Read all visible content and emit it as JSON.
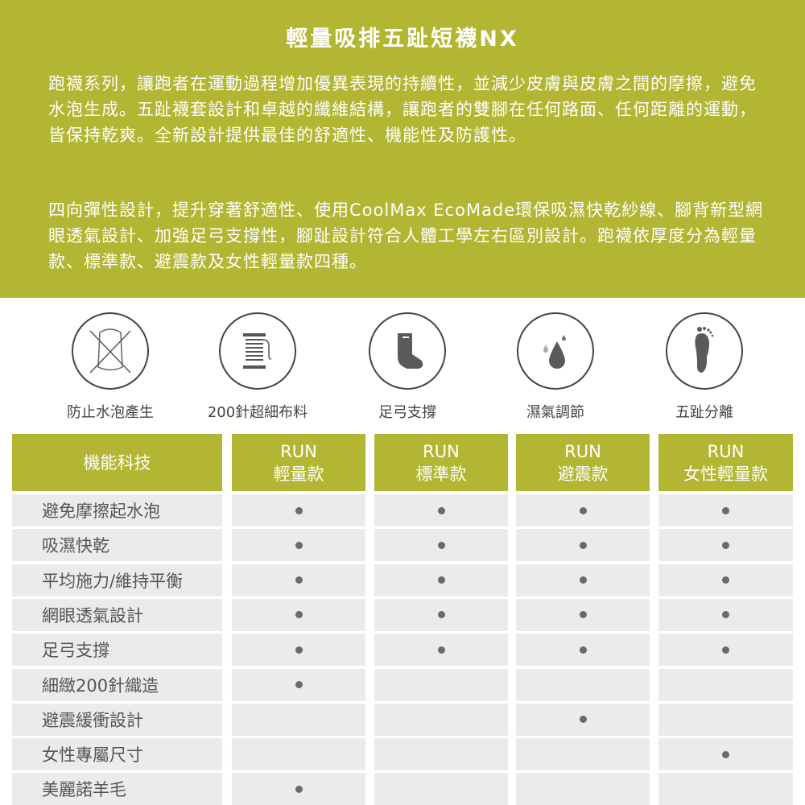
{
  "header": {
    "title": "輕量吸排五趾短襪NX",
    "paragraph1": "跑襪系列，讓跑者在運動過程增加優異表現的持續性，並減少皮膚與皮膚之間的摩擦，避免水泡生成。五趾襪套設計和卓越的纖維結構，讓跑者的雙腳在任何路面、任何距離的運動，皆保持乾爽。全新設計提供最佳的舒適性、機能性及防護性。",
    "paragraph2": "四向彈性設計，提升穿著舒適性、使用CoolMax EcoMade環保吸濕快乾紗線、腳背新型網眼透氣設計、加強足弓支撐性，腳趾設計符合人體工學左右區別設計。跑襪依厚度分為輕量款、標準款、避震款及女性輕量款四種。"
  },
  "features": [
    {
      "icon": "no-blister-icon",
      "label": "防止水泡產生"
    },
    {
      "icon": "thread-spool-icon",
      "label": "200針超細布料"
    },
    {
      "icon": "sock-icon",
      "label": "足弓支撐"
    },
    {
      "icon": "water-drop-icon",
      "label": "濕氣調節"
    },
    {
      "icon": "footprint-icon",
      "label": "五趾分離"
    }
  ],
  "table": {
    "header": "機能科技",
    "columns": [
      {
        "line1": "RUN",
        "line2": "輕量款"
      },
      {
        "line1": "RUN",
        "line2": "標準款"
      },
      {
        "line1": "RUN",
        "line2": "避震款"
      },
      {
        "line1": "RUN",
        "line2": "女性輕量款"
      }
    ],
    "rows": [
      {
        "label": "避免摩擦起水泡",
        "marks": [
          true,
          true,
          true,
          true
        ]
      },
      {
        "label": "吸濕快乾",
        "marks": [
          true,
          true,
          true,
          true
        ]
      },
      {
        "label": "平均施力/維持平衡",
        "marks": [
          true,
          true,
          true,
          true
        ]
      },
      {
        "label": "網眼透氣設計",
        "marks": [
          true,
          true,
          true,
          true
        ]
      },
      {
        "label": "足弓支撐",
        "marks": [
          true,
          true,
          true,
          true
        ]
      },
      {
        "label": "細緻200針織造",
        "marks": [
          true,
          false,
          false,
          false
        ]
      },
      {
        "label": "避震緩衝設計",
        "marks": [
          false,
          false,
          true,
          false
        ]
      },
      {
        "label": "女性專屬尺寸",
        "marks": [
          false,
          false,
          false,
          true
        ]
      },
      {
        "label": "美麗諾羊毛",
        "marks": [
          true,
          false,
          false,
          false
        ]
      }
    ]
  },
  "colors": {
    "accent": "#b2b632",
    "row_bg": "#ebebed",
    "icon": "#555555"
  }
}
